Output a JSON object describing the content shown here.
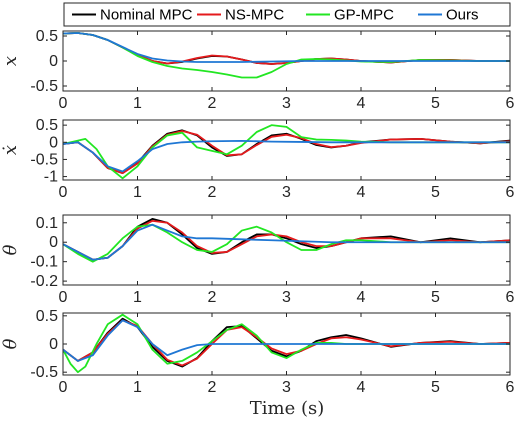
{
  "chart_data": {
    "type": "line",
    "xlabel": "Time (s)",
    "xlim": [
      0,
      6
    ],
    "xticks": [
      "0",
      "1",
      "2",
      "3",
      "4",
      "5",
      "6"
    ],
    "legend": {
      "placement": "top",
      "entries": [
        "Nominal MPC",
        "NS-MPC",
        "GP-MPC",
        "Ours"
      ]
    },
    "colors": {
      "Nominal MPC": "#000000",
      "NS-MPC": "#e41a1c",
      "GP-MPC": "#22e622",
      "Ours": "#1f77d4"
    },
    "grid": false,
    "panels": [
      {
        "ylabel": "x",
        "ylim": [
          -0.6,
          0.6
        ],
        "yticks": [
          {
            "v": 0.5,
            "label": "0.5"
          },
          {
            "v": 0,
            "label": "0"
          },
          {
            "v": -0.5,
            "label": "-0.5"
          }
        ],
        "series": [
          {
            "name": "Nominal MPC",
            "x": [
              0,
              0.2,
              0.4,
              0.6,
              0.8,
              1.0,
              1.2,
              1.4,
              1.6,
              1.8,
              2.0,
              2.2,
              2.4,
              2.6,
              2.8,
              3.0,
              3.2,
              3.4,
              3.6,
              3.8,
              4.0,
              4.4,
              4.8,
              5.2,
              5.6,
              6.0
            ],
            "y": [
              0.55,
              0.56,
              0.52,
              0.42,
              0.27,
              0.12,
              0.0,
              -0.05,
              -0.02,
              0.05,
              0.1,
              0.09,
              0.03,
              -0.04,
              -0.06,
              -0.04,
              0.0,
              0.04,
              0.05,
              0.03,
              0.0,
              -0.03,
              0.02,
              0.02,
              0.0,
              0.0
            ]
          },
          {
            "name": "NS-MPC",
            "x": [
              0,
              0.2,
              0.4,
              0.6,
              0.8,
              1.0,
              1.2,
              1.4,
              1.6,
              1.8,
              2.0,
              2.2,
              2.4,
              2.6,
              2.8,
              3.0,
              3.2,
              3.4,
              3.6,
              3.8,
              4.0,
              4.4,
              4.8,
              5.2,
              5.6,
              6.0
            ],
            "y": [
              0.55,
              0.56,
              0.52,
              0.42,
              0.27,
              0.12,
              0.0,
              -0.05,
              -0.01,
              0.06,
              0.11,
              0.09,
              0.03,
              -0.04,
              -0.06,
              -0.04,
              0.0,
              0.04,
              0.05,
              0.03,
              0.0,
              -0.03,
              0.02,
              0.02,
              0.0,
              0.0
            ]
          },
          {
            "name": "GP-MPC",
            "x": [
              0,
              0.2,
              0.4,
              0.6,
              0.8,
              1.0,
              1.2,
              1.4,
              1.6,
              1.8,
              2.0,
              2.2,
              2.4,
              2.6,
              2.8,
              3.0,
              3.2,
              3.4,
              3.6,
              3.8,
              4.0,
              4.4,
              4.8,
              5.2,
              5.6,
              6.0
            ],
            "y": [
              0.55,
              0.56,
              0.52,
              0.42,
              0.27,
              0.1,
              -0.02,
              -0.1,
              -0.15,
              -0.18,
              -0.22,
              -0.27,
              -0.33,
              -0.33,
              -0.22,
              -0.06,
              0.03,
              0.04,
              0.03,
              0.01,
              -0.01,
              -0.02,
              0.02,
              0.01,
              0.0,
              0.0
            ]
          },
          {
            "name": "Ours",
            "x": [
              0,
              0.2,
              0.4,
              0.6,
              0.8,
              1.0,
              1.2,
              1.4,
              1.6,
              1.8,
              2.0,
              2.4,
              2.8,
              3.2,
              3.6,
              4.0,
              4.4,
              4.8,
              5.2,
              5.6,
              6.0
            ],
            "y": [
              0.55,
              0.56,
              0.52,
              0.42,
              0.28,
              0.14,
              0.05,
              0.01,
              -0.01,
              -0.02,
              -0.02,
              -0.02,
              -0.01,
              0.0,
              0.0,
              0.0,
              0.0,
              0.0,
              0.0,
              0.0,
              0.0
            ]
          }
        ]
      },
      {
        "ylabel": "ẋ",
        "ylim": [
          -1.1,
          0.65
        ],
        "yticks": [
          {
            "v": 0.5,
            "label": "0.5"
          },
          {
            "v": 0,
            "label": "0"
          },
          {
            "v": -0.5,
            "label": "-0.5"
          },
          {
            "v": -1,
            "label": "-1"
          }
        ],
        "series": [
          {
            "name": "Nominal MPC",
            "x": [
              0,
              0.2,
              0.4,
              0.6,
              0.8,
              1.0,
              1.2,
              1.4,
              1.6,
              1.8,
              2.0,
              2.2,
              2.4,
              2.6,
              2.8,
              3.0,
              3.2,
              3.4,
              3.6,
              3.8,
              4.0,
              4.4,
              4.8,
              5.2,
              5.6,
              6.0
            ],
            "y": [
              -0.05,
              0.0,
              -0.3,
              -0.75,
              -0.9,
              -0.6,
              -0.1,
              0.25,
              0.35,
              0.2,
              -0.15,
              -0.4,
              -0.35,
              -0.05,
              0.2,
              0.25,
              0.1,
              -0.08,
              -0.15,
              -0.1,
              0.0,
              0.08,
              0.1,
              0.02,
              -0.03,
              0.05
            ]
          },
          {
            "name": "NS-MPC",
            "x": [
              0,
              0.2,
              0.4,
              0.6,
              0.8,
              1.0,
              1.2,
              1.4,
              1.6,
              1.8,
              2.0,
              2.2,
              2.4,
              2.6,
              2.8,
              3.0,
              3.2,
              3.4,
              3.6,
              3.8,
              4.0,
              4.4,
              4.8,
              5.2,
              5.6,
              6.0
            ],
            "y": [
              -0.05,
              0.0,
              -0.3,
              -0.75,
              -0.9,
              -0.62,
              -0.12,
              0.22,
              0.33,
              0.22,
              -0.1,
              -0.38,
              -0.35,
              -0.08,
              0.16,
              0.22,
              0.12,
              -0.05,
              -0.14,
              -0.1,
              -0.02,
              0.08,
              0.1,
              0.02,
              -0.03,
              0.03
            ]
          },
          {
            "name": "GP-MPC",
            "x": [
              0,
              0.2,
              0.3,
              0.45,
              0.6,
              0.8,
              1.0,
              1.2,
              1.4,
              1.6,
              1.8,
              2.0,
              2.2,
              2.4,
              2.6,
              2.8,
              3.0,
              3.2,
              3.4,
              3.6,
              3.8,
              4.0,
              4.4,
              4.8,
              5.2,
              5.6,
              6.0
            ],
            "y": [
              -0.05,
              0.05,
              0.1,
              -0.2,
              -0.7,
              -1.05,
              -0.7,
              -0.15,
              0.2,
              0.28,
              -0.15,
              -0.25,
              -0.35,
              -0.1,
              0.3,
              0.5,
              0.45,
              0.15,
              0.08,
              0.07,
              0.05,
              0.02,
              0.0,
              0.0,
              0.0,
              0.0,
              0.0
            ]
          },
          {
            "name": "Ours",
            "x": [
              0,
              0.2,
              0.4,
              0.6,
              0.8,
              1.0,
              1.2,
              1.4,
              1.6,
              1.8,
              2.0,
              2.4,
              2.8,
              3.2,
              3.6,
              4.0,
              4.4,
              4.8,
              5.2,
              5.6,
              6.0
            ],
            "y": [
              -0.05,
              0.0,
              -0.3,
              -0.7,
              -0.85,
              -0.55,
              -0.2,
              -0.05,
              0.0,
              0.02,
              0.03,
              0.04,
              0.02,
              0.01,
              0.0,
              0.0,
              0.0,
              0.0,
              0.0,
              0.0,
              0.0
            ]
          }
        ]
      },
      {
        "ylabel": "θ",
        "ylim": [
          -0.22,
          0.14
        ],
        "yticks": [
          {
            "v": 0.1,
            "label": "0.1"
          },
          {
            "v": 0,
            "label": "0"
          },
          {
            "v": -0.1,
            "label": "-0.1"
          },
          {
            "v": -0.2,
            "label": "-0.2"
          }
        ],
        "series": [
          {
            "name": "Nominal MPC",
            "x": [
              0,
              0.2,
              0.4,
              0.6,
              0.8,
              1.0,
              1.2,
              1.4,
              1.6,
              1.8,
              2.0,
              2.2,
              2.4,
              2.6,
              2.8,
              3.0,
              3.2,
              3.4,
              3.6,
              3.8,
              4.0,
              4.4,
              4.8,
              5.2,
              5.6,
              6.0
            ],
            "y": [
              -0.01,
              -0.05,
              -0.09,
              -0.08,
              -0.02,
              0.08,
              0.12,
              0.1,
              0.04,
              -0.03,
              -0.06,
              -0.05,
              0.0,
              0.04,
              0.04,
              0.02,
              -0.01,
              -0.03,
              -0.02,
              0.0,
              0.02,
              0.03,
              0.0,
              0.02,
              0.0,
              0.01
            ]
          },
          {
            "name": "NS-MPC",
            "x": [
              0,
              0.2,
              0.4,
              0.6,
              0.8,
              1.0,
              1.2,
              1.4,
              1.6,
              1.8,
              2.0,
              2.2,
              2.4,
              2.6,
              2.8,
              3.0,
              3.2,
              3.4,
              3.6,
              3.8,
              4.0,
              4.4,
              4.8,
              5.2,
              5.6,
              6.0
            ],
            "y": [
              -0.01,
              -0.05,
              -0.09,
              -0.08,
              -0.02,
              0.07,
              0.11,
              0.1,
              0.05,
              -0.02,
              -0.055,
              -0.05,
              -0.01,
              0.03,
              0.04,
              0.03,
              0.0,
              -0.02,
              -0.02,
              0.0,
              0.02,
              0.02,
              0.0,
              0.01,
              0.0,
              0.01
            ]
          },
          {
            "name": "GP-MPC",
            "x": [
              0,
              0.2,
              0.4,
              0.6,
              0.8,
              1.0,
              1.2,
              1.4,
              1.6,
              1.8,
              2.0,
              2.2,
              2.4,
              2.6,
              2.8,
              3.0,
              3.2,
              3.4,
              3.6,
              3.8,
              4.0,
              4.4,
              4.8,
              5.2,
              5.6,
              6.0
            ],
            "y": [
              -0.01,
              -0.06,
              -0.1,
              -0.06,
              0.02,
              0.08,
              0.09,
              0.05,
              0.0,
              -0.04,
              -0.05,
              -0.01,
              0.06,
              0.08,
              0.05,
              0.0,
              -0.04,
              -0.04,
              -0.01,
              0.01,
              0.01,
              0.0,
              0.0,
              0.0,
              0.0,
              0.0
            ]
          },
          {
            "name": "Ours",
            "x": [
              0,
              0.2,
              0.4,
              0.6,
              0.8,
              1.0,
              1.2,
              1.4,
              1.6,
              1.8,
              2.0,
              2.4,
              2.8,
              3.2,
              3.6,
              4.0,
              4.4,
              4.8,
              5.2,
              5.6,
              6.0
            ],
            "y": [
              -0.01,
              -0.05,
              -0.09,
              -0.08,
              -0.02,
              0.06,
              0.09,
              0.06,
              0.03,
              0.02,
              0.02,
              0.015,
              0.01,
              0.005,
              0.0,
              0.0,
              0.0,
              0.0,
              0.0,
              0.0,
              0.0
            ]
          }
        ]
      },
      {
        "ylabel": "θ",
        "ylim": [
          -0.55,
          0.55
        ],
        "yticks": [
          {
            "v": 0.5,
            "label": "0.5"
          },
          {
            "v": 0,
            "label": "0"
          },
          {
            "v": -0.5,
            "label": "-0.5"
          }
        ],
        "series": [
          {
            "name": "Nominal MPC",
            "x": [
              0,
              0.2,
              0.4,
              0.6,
              0.8,
              1.0,
              1.2,
              1.4,
              1.6,
              1.8,
              2.0,
              2.2,
              2.4,
              2.6,
              2.8,
              3.0,
              3.2,
              3.4,
              3.6,
              3.8,
              4.0,
              4.4,
              4.8,
              5.2,
              5.6,
              6.0
            ],
            "y": [
              -0.1,
              -0.3,
              -0.15,
              0.2,
              0.45,
              0.3,
              -0.05,
              -0.3,
              -0.4,
              -0.25,
              0.05,
              0.3,
              0.32,
              0.1,
              -0.12,
              -0.22,
              -0.12,
              0.05,
              0.12,
              0.16,
              0.1,
              -0.05,
              0.02,
              0.05,
              0.0,
              0.02
            ]
          },
          {
            "name": "NS-MPC",
            "x": [
              0,
              0.2,
              0.4,
              0.6,
              0.8,
              1.0,
              1.2,
              1.4,
              1.6,
              1.8,
              2.0,
              2.2,
              2.4,
              2.6,
              2.8,
              3.0,
              3.2,
              3.4,
              3.6,
              3.8,
              4.0,
              4.4,
              4.8,
              5.2,
              5.6,
              6.0
            ],
            "y": [
              -0.1,
              -0.3,
              -0.15,
              0.18,
              0.42,
              0.32,
              0.0,
              -0.28,
              -0.38,
              -0.26,
              0.0,
              0.25,
              0.3,
              0.12,
              -0.08,
              -0.18,
              -0.12,
              0.0,
              0.1,
              0.12,
              0.08,
              -0.04,
              0.02,
              0.04,
              0.0,
              0.02
            ]
          },
          {
            "name": "GP-MPC",
            "x": [
              0,
              0.1,
              0.2,
              0.3,
              0.45,
              0.6,
              0.8,
              1.0,
              1.2,
              1.4,
              1.6,
              1.8,
              2.0,
              2.2,
              2.4,
              2.6,
              2.8,
              3.0,
              3.2,
              3.4,
              3.6,
              3.8,
              4.0,
              4.4,
              4.8,
              5.2,
              5.6,
              6.0
            ],
            "y": [
              -0.1,
              -0.35,
              -0.5,
              -0.4,
              0.0,
              0.35,
              0.52,
              0.35,
              -0.1,
              -0.35,
              -0.3,
              -0.15,
              0.05,
              0.25,
              0.35,
              0.15,
              -0.15,
              -0.25,
              -0.1,
              0.02,
              0.02,
              0.0,
              0.0,
              0.0,
              0.0,
              0.0,
              0.0,
              0.0
            ]
          },
          {
            "name": "Ours",
            "x": [
              0,
              0.2,
              0.4,
              0.6,
              0.8,
              1.0,
              1.2,
              1.4,
              1.6,
              1.8,
              2.0,
              2.4,
              2.8,
              3.2,
              3.6,
              4.0,
              4.4,
              4.8,
              5.2,
              5.6,
              6.0
            ],
            "y": [
              -0.1,
              -0.3,
              -0.2,
              0.15,
              0.42,
              0.3,
              0.0,
              -0.2,
              -0.1,
              -0.02,
              0.0,
              0.0,
              0.0,
              0.0,
              0.0,
              0.0,
              0.0,
              0.0,
              0.0,
              0.0,
              0.0
            ]
          }
        ]
      }
    ]
  }
}
